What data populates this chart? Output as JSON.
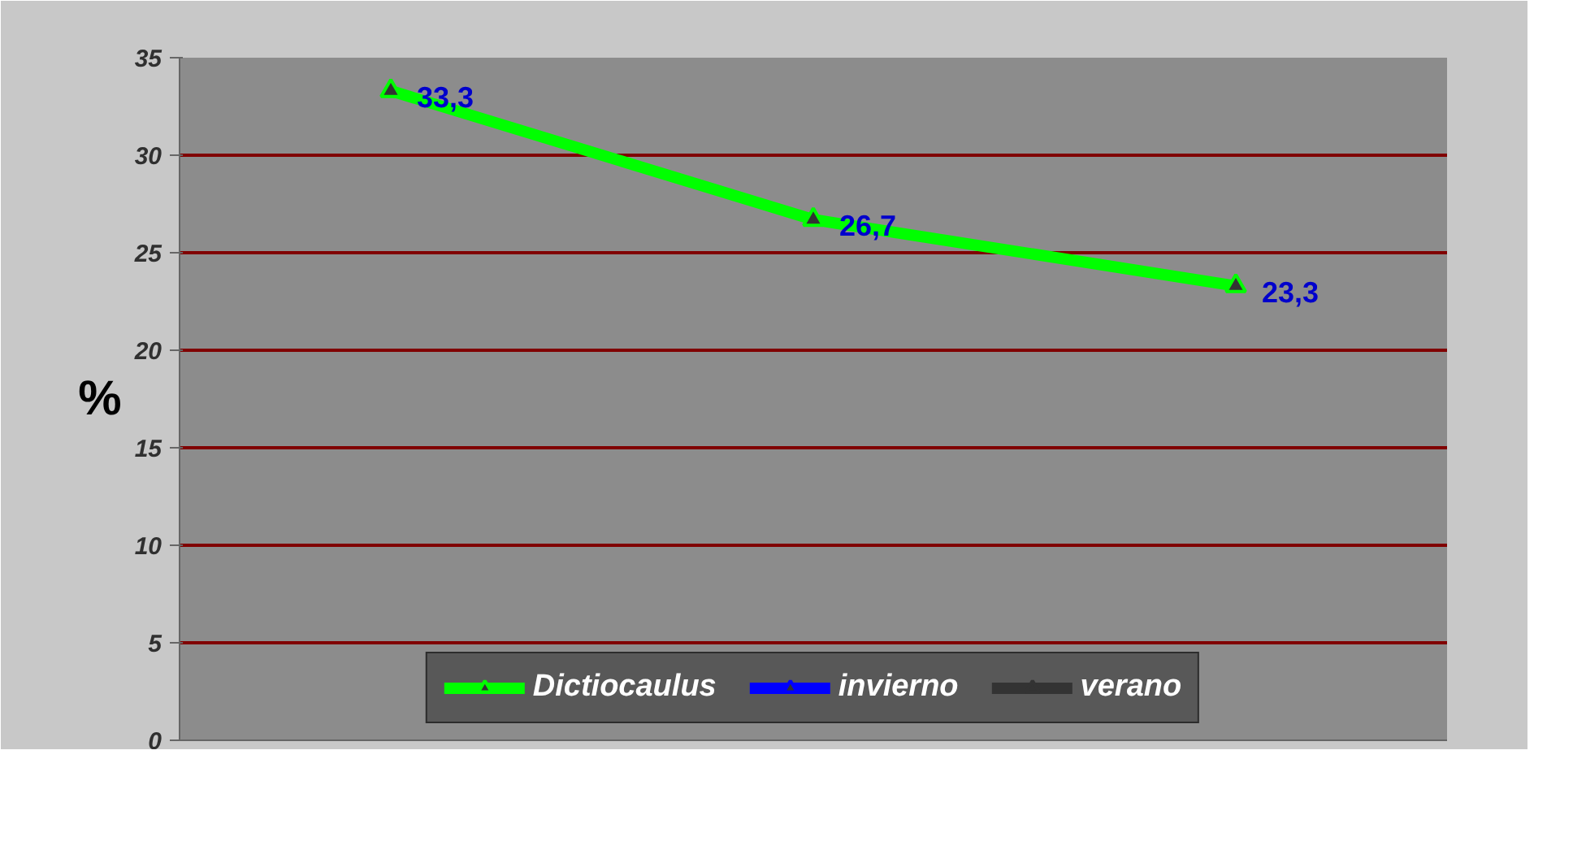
{
  "chart_data": {
    "type": "line",
    "ylabel": "%",
    "categories": [
      null,
      null,
      null
    ],
    "series": [
      {
        "name": "Dictiocaulus",
        "color": "#00ff00",
        "values": [
          33.3,
          26.7,
          23.3
        ],
        "value_labels": [
          "33,3",
          "26,7",
          "23,3"
        ]
      },
      {
        "name": "invierno",
        "color": "#0000ff",
        "values": [
          null,
          null,
          null
        ]
      },
      {
        "name": "verano",
        "color": "#333333",
        "values": [
          null,
          null,
          null
        ]
      }
    ],
    "ylim": [
      0,
      35
    ],
    "yticks": [
      0,
      5,
      10,
      15,
      20,
      25,
      30,
      35
    ],
    "grid": "y",
    "legend": "bottom",
    "marker": "triangle",
    "tick_labels": "y"
  }
}
